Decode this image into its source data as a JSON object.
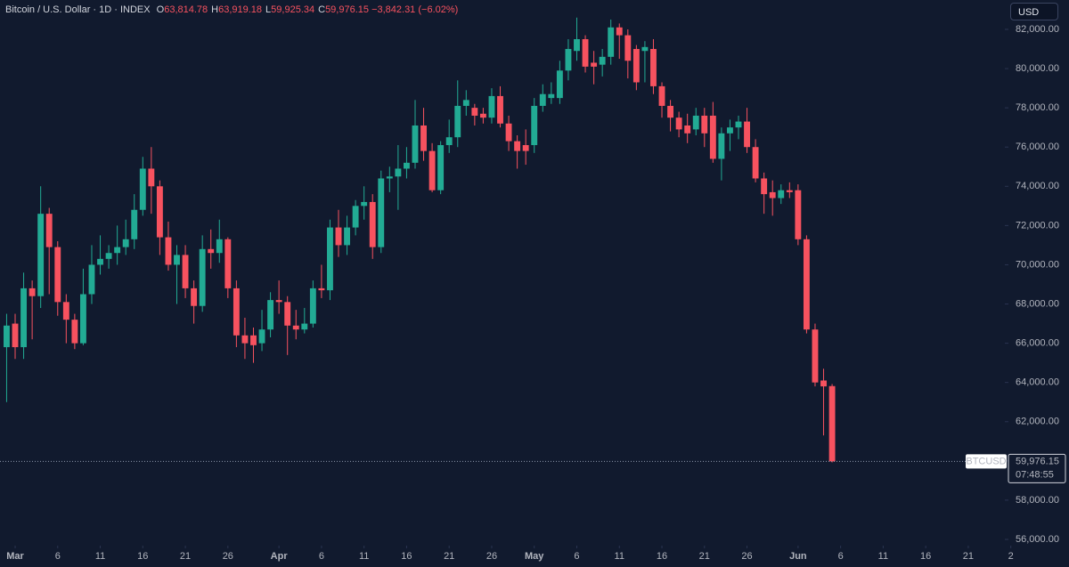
{
  "chart_data": {
    "type": "candlestick",
    "title": "Bitcoin / U.S. Dollar · 1D · INDEX",
    "ohlc_legend": [
      {
        "key": "O",
        "value": "63,814.78"
      },
      {
        "key": "H",
        "value": "63,919.18"
      },
      {
        "key": "L",
        "value": "59,925.34"
      },
      {
        "key": "C",
        "value": "59,976.15"
      }
    ],
    "change": "−3,842.31 (−6.02%)",
    "currency": "USD",
    "price_tag": {
      "symbol": "BTCUSD",
      "price": "59,976.15",
      "countdown": "07:48:55"
    },
    "up_color": "#22ab94",
    "down_color": "#f7525f",
    "xlim": [
      -1.78,
      116.3
    ],
    "xticks": [
      {
        "value": 0,
        "label": "Mar"
      },
      {
        "value": 5,
        "label": "6"
      },
      {
        "value": 10,
        "label": "11"
      },
      {
        "value": 15,
        "label": "16"
      },
      {
        "value": 20,
        "label": "21"
      },
      {
        "value": 25,
        "label": "26"
      },
      {
        "value": 31,
        "label": "Apr"
      },
      {
        "value": 36,
        "label": "6"
      },
      {
        "value": 41,
        "label": "11"
      },
      {
        "value": 46,
        "label": "16"
      },
      {
        "value": 51,
        "label": "21"
      },
      {
        "value": 56,
        "label": "26"
      },
      {
        "value": 61,
        "label": "May"
      },
      {
        "value": 66,
        "label": "6"
      },
      {
        "value": 71,
        "label": "11"
      },
      {
        "value": 76,
        "label": "16"
      },
      {
        "value": 81,
        "label": "21"
      },
      {
        "value": 86,
        "label": "26"
      },
      {
        "value": 92,
        "label": "Jun"
      },
      {
        "value": 97,
        "label": "6"
      },
      {
        "value": 102,
        "label": "11"
      },
      {
        "value": 107,
        "label": "16"
      },
      {
        "value": 112,
        "label": "21"
      },
      {
        "value": 117,
        "label": "2"
      }
    ],
    "ylim": [
      55682,
      83497
    ],
    "yticks": [
      {
        "value": 56000,
        "label": "56,000.00"
      },
      {
        "value": 58000,
        "label": "58,000.00"
      },
      {
        "value": 60000,
        "label": "60,000.00"
      },
      {
        "value": 62000,
        "label": "62,000.00"
      },
      {
        "value": 64000,
        "label": "64,000.00"
      },
      {
        "value": 66000,
        "label": "66,000.00"
      },
      {
        "value": 68000,
        "label": "68,000.00"
      },
      {
        "value": 70000,
        "label": "70,000.00"
      },
      {
        "value": 72000,
        "label": "72,000.00"
      },
      {
        "value": 74000,
        "label": "74,000.00"
      },
      {
        "value": 76000,
        "label": "76,000.00"
      },
      {
        "value": 78000,
        "label": "78,000.00"
      },
      {
        "value": 80000,
        "label": "80,000.00"
      },
      {
        "value": 82000,
        "label": "82,000.00"
      }
    ],
    "x": [
      -1,
      0,
      1,
      2,
      3,
      4,
      5,
      6,
      7,
      8,
      9,
      10,
      11,
      12,
      13,
      14,
      15,
      16,
      17,
      18,
      19,
      20,
      21,
      22,
      23,
      24,
      25,
      26,
      27,
      28,
      29,
      30,
      31,
      32,
      33,
      34,
      35,
      36,
      37,
      38,
      39,
      40,
      41,
      42,
      43,
      44,
      45,
      46,
      47,
      48,
      49,
      50,
      51,
      52,
      53,
      54,
      55,
      56,
      57,
      58,
      59,
      60,
      61,
      62,
      63,
      64,
      65,
      66,
      67,
      68,
      69,
      70,
      71,
      72,
      73,
      74,
      75,
      76,
      77,
      78,
      79,
      80,
      81,
      82,
      83,
      84,
      85,
      86,
      87,
      88,
      89,
      90,
      91,
      92,
      93,
      94,
      95,
      96
    ],
    "open": [
      65800,
      67000,
      65800,
      68800,
      68400,
      72600,
      70900,
      68100,
      67200,
      66000,
      68500,
      70000,
      70300,
      70600,
      70900,
      71300,
      72800,
      74900,
      74000,
      71400,
      70000,
      70500,
      68800,
      67900,
      70800,
      70600,
      71300,
      68800,
      66400,
      66400,
      66000,
      66700,
      68200,
      68100,
      66900,
      66700,
      67000,
      68800,
      68700,
      71900,
      71000,
      71900,
      73000,
      73200,
      70900,
      74400,
      74500,
      74900,
      75200,
      77100,
      75800,
      73800,
      76100,
      76500,
      78100,
      78000,
      77700,
      77500,
      78600,
      77200,
      76300,
      76100,
      76100,
      78100,
      78500,
      78500,
      79900,
      80900,
      81500,
      80300,
      80200,
      80600,
      82100,
      81700,
      81000,
      80900,
      81000,
      79100,
      78100,
      77500,
      77100,
      76900,
      77600,
      77600,
      75400,
      76700,
      77000,
      77300,
      76000,
      74400,
      73700,
      73400,
      73800,
      73800,
      71300,
      66700,
      64100,
      63814.78
    ],
    "high": [
      67500,
      67500,
      69600,
      69200,
      74000,
      72900,
      71200,
      68500,
      67500,
      69800,
      71000,
      71500,
      71000,
      72000,
      72300,
      73600,
      75500,
      76000,
      74300,
      72200,
      71000,
      71000,
      69200,
      71500,
      71800,
      72300,
      71400,
      69200,
      67300,
      66800,
      67700,
      68600,
      69200,
      68400,
      67700,
      67800,
      69200,
      70000,
      72300,
      72800,
      72500,
      73300,
      74000,
      73600,
      74800,
      75000,
      76100,
      76000,
      78400,
      78000,
      76200,
      76300,
      77400,
      79400,
      78900,
      78200,
      78000,
      79000,
      79100,
      77600,
      76600,
      76900,
      78500,
      79200,
      79300,
      80400,
      81500,
      82600,
      81700,
      80900,
      81000,
      82500,
      82300,
      82000,
      81200,
      81400,
      81500,
      79300,
      78400,
      77800,
      77700,
      78000,
      78000,
      78300,
      77000,
      77400,
      77600,
      78000,
      76400,
      74700,
      74300,
      74100,
      74200,
      74100,
      71500,
      67000,
      64700,
      63919.18
    ],
    "low": [
      63000,
      65200,
      65200,
      66200,
      67800,
      68500,
      67400,
      66000,
      65700,
      65900,
      68000,
      69500,
      69800,
      70000,
      70500,
      70800,
      72500,
      72600,
      70500,
      69700,
      68000,
      68300,
      67000,
      67600,
      69800,
      70100,
      68300,
      65800,
      65200,
      65000,
      65600,
      66300,
      67500,
      65400,
      66200,
      66500,
      66800,
      68300,
      68200,
      70400,
      70500,
      71500,
      72300,
      70300,
      70600,
      73700,
      72800,
      74400,
      74900,
      75300,
      73700,
      73600,
      75700,
      76000,
      77600,
      77100,
      77200,
      77200,
      77000,
      75800,
      74900,
      75100,
      75700,
      77800,
      78200,
      78200,
      79400,
      80400,
      79800,
      79200,
      79600,
      80200,
      80500,
      79500,
      78900,
      79300,
      78700,
      77500,
      76800,
      76500,
      76200,
      76600,
      76000,
      75200,
      74300,
      75800,
      76400,
      75700,
      74200,
      72600,
      72500,
      73100,
      73400,
      71000,
      66500,
      63800,
      61300,
      59925.34
    ],
    "close": [
      66900,
      65800,
      68800,
      68400,
      72600,
      70900,
      68100,
      67200,
      66000,
      68500,
      70000,
      70300,
      70600,
      70900,
      71300,
      72800,
      74900,
      74000,
      71400,
      70000,
      70500,
      68800,
      67900,
      70800,
      70600,
      71300,
      68800,
      66400,
      66000,
      65900,
      66700,
      68200,
      68100,
      66900,
      66700,
      67000,
      68800,
      68700,
      71900,
      71000,
      71900,
      73000,
      73200,
      70900,
      74400,
      74500,
      74900,
      75200,
      77100,
      75800,
      73800,
      76100,
      76500,
      78100,
      78400,
      77600,
      77500,
      78600,
      77200,
      76300,
      75800,
      75800,
      78100,
      78700,
      78700,
      79900,
      81000,
      81500,
      80100,
      80100,
      80600,
      82100,
      81700,
      80400,
      79300,
      81100,
      79100,
      78100,
      77500,
      76900,
      76700,
      77600,
      76700,
      75400,
      76700,
      77000,
      77300,
      76000,
      74400,
      73600,
      73400,
      73800,
      73700,
      71300,
      66700,
      64000,
      63800,
      59976.15
    ]
  }
}
